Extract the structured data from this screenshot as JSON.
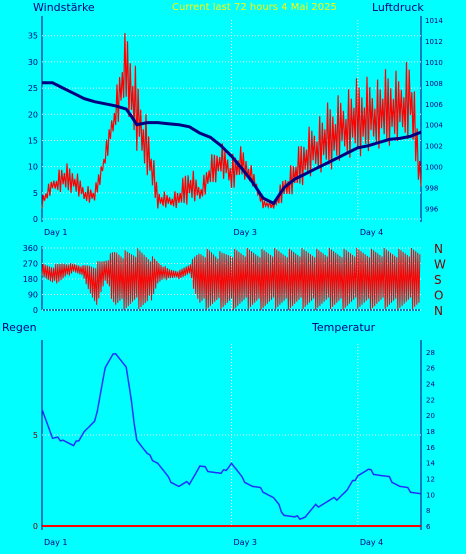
{
  "header": {
    "left_title": "Windstärke",
    "center_title": "Current last 72 hours 4 Mai 2025",
    "right_title": "Luftdruck"
  },
  "colors": {
    "background": "#00FFFF",
    "wind": "#FF0000",
    "pressure": "#000080",
    "temperature": "#1E32FF",
    "rain": "#FF0000",
    "title": "#FFFF00",
    "grid": "#FFFFFF"
  },
  "chart_data": [
    {
      "type": "line",
      "name": "wind-pressure-panel",
      "x_ticks": [
        "Day 1",
        "Day 3",
        "Day 4"
      ],
      "left_axis": {
        "label": "Windstärke",
        "ticks": [
          0,
          5,
          10,
          15,
          20,
          25,
          30,
          35
        ],
        "ylim": [
          0,
          38
        ]
      },
      "right_axis": {
        "label": "Luftdruck",
        "ticks": [
          996,
          998,
          1000,
          1002,
          1004,
          1006,
          1008,
          1010,
          1012,
          1014
        ],
        "ylim": [
          995,
          1014
        ]
      },
      "grid": true,
      "series": [
        {
          "name": "Windstärke",
          "axis": "left",
          "style": "spikes",
          "x": [
            0,
            2,
            4,
            6,
            8,
            10,
            12,
            14,
            16,
            18,
            20,
            22,
            24,
            26,
            28,
            30,
            32,
            34,
            36,
            38,
            40,
            42,
            44,
            46,
            48,
            50,
            52,
            54,
            56,
            58,
            60,
            62,
            64,
            66,
            68,
            70,
            72
          ],
          "base": [
            2,
            5,
            5,
            5,
            3,
            3,
            10,
            17,
            22,
            12,
            8,
            2,
            2,
            2,
            3,
            3,
            6,
            8,
            5,
            8,
            6,
            2,
            2,
            3,
            5,
            7,
            8,
            9,
            10,
            11,
            12,
            12,
            13,
            14,
            14,
            15,
            5
          ],
          "peak": [
            5,
            8,
            11,
            10,
            7,
            6,
            14,
            25,
            37,
            29,
            20,
            6,
            5,
            6,
            11,
            7,
            12,
            15,
            13,
            14,
            10,
            4,
            3,
            9,
            12,
            17,
            20,
            22,
            24,
            26,
            27,
            28,
            28,
            29,
            29,
            33,
            10
          ]
        },
        {
          "name": "Luftdruck",
          "axis": "right",
          "x": [
            0,
            2,
            4,
            6,
            8,
            10,
            12,
            14,
            16,
            17,
            18,
            20,
            22,
            24,
            26,
            28,
            30,
            32,
            34,
            36,
            38,
            40,
            42,
            44,
            46,
            48,
            50,
            52,
            54,
            56,
            58,
            60,
            62,
            64,
            66,
            68,
            70,
            72
          ],
          "values": [
            1008,
            1008,
            1007.5,
            1007,
            1006.5,
            1006.2,
            1006,
            1005.8,
            1005.5,
            1004.8,
            1004,
            1004.2,
            1004.2,
            1004.1,
            1004,
            1003.8,
            1003.2,
            1002.8,
            1002,
            1001,
            999.8,
            998.5,
            997,
            996.5,
            998,
            998.8,
            999.3,
            999.8,
            1000.3,
            1000.8,
            1001.3,
            1001.8,
            1002,
            1002.3,
            1002.6,
            1002.7,
            1002.9,
            1003.3
          ]
        }
      ]
    },
    {
      "type": "line",
      "name": "wind-direction-panel",
      "left_axis": {
        "ticks": [
          0,
          90,
          180,
          270,
          360
        ],
        "ylim": [
          0,
          360
        ]
      },
      "right_labels": [
        "N",
        "W",
        "S",
        "O",
        "N"
      ],
      "grid": true,
      "series": [
        {
          "name": "Windrichtung",
          "style": "oscillation",
          "x": [
            0,
            2,
            4,
            6,
            8,
            10,
            12,
            14,
            16,
            18,
            20,
            22,
            24,
            26,
            28,
            30,
            32,
            34,
            36,
            38,
            40,
            42,
            44,
            46,
            48,
            50,
            52,
            54,
            56,
            58,
            60,
            62,
            64,
            66,
            68,
            70,
            72
          ],
          "low": [
            200,
            140,
            170,
            220,
            180,
            0,
            150,
            0,
            0,
            0,
            0,
            140,
            180,
            180,
            200,
            0,
            0,
            0,
            0,
            0,
            0,
            0,
            0,
            0,
            0,
            0,
            0,
            0,
            0,
            0,
            0,
            0,
            0,
            0,
            0,
            0,
            0
          ],
          "high": [
            270,
            260,
            280,
            270,
            260,
            280,
            300,
            360,
            350,
            360,
            340,
            290,
            240,
            230,
            270,
            360,
            360,
            340,
            360,
            360,
            360,
            360,
            360,
            360,
            360,
            360,
            360,
            360,
            360,
            360,
            360,
            360,
            360,
            360,
            360,
            360,
            360
          ]
        }
      ]
    },
    {
      "type": "line",
      "name": "rain-temperature-panel",
      "x_ticks": [
        "Day 1",
        "Day 3",
        "Day 4"
      ],
      "left_axis": {
        "label": "Regen",
        "ticks": [
          0,
          5
        ],
        "ylim": [
          0,
          10
        ]
      },
      "right_axis": {
        "label": "Temperatur",
        "ticks": [
          6,
          8,
          10,
          12,
          14,
          16,
          18,
          20,
          22,
          24,
          26,
          28
        ],
        "ylim": [
          6,
          29
        ]
      },
      "grid": true,
      "series": [
        {
          "name": "Regen",
          "axis": "left",
          "x": [
            0,
            72
          ],
          "values": [
            0,
            0
          ]
        },
        {
          "name": "Temperatur",
          "axis": "right",
          "x": [
            0,
            2,
            4,
            6,
            8,
            10,
            12,
            14,
            16,
            18,
            20,
            22,
            24,
            26,
            28,
            30,
            32,
            34,
            36,
            38,
            40,
            42,
            44,
            46,
            48,
            50,
            52,
            54,
            56,
            58,
            60,
            62,
            64,
            66,
            68,
            70,
            72
          ],
          "values": [
            21,
            17,
            17,
            16,
            18,
            19,
            26,
            28,
            26,
            17,
            15,
            14,
            12,
            11,
            11.5,
            13.5,
            13,
            12.5,
            14,
            12,
            11,
            10.5,
            9.5,
            7.5,
            7,
            7.2,
            8.5,
            9,
            9.5,
            10.5,
            12.5,
            13,
            12.5,
            12,
            11,
            10.5,
            10
          ]
        }
      ]
    }
  ]
}
